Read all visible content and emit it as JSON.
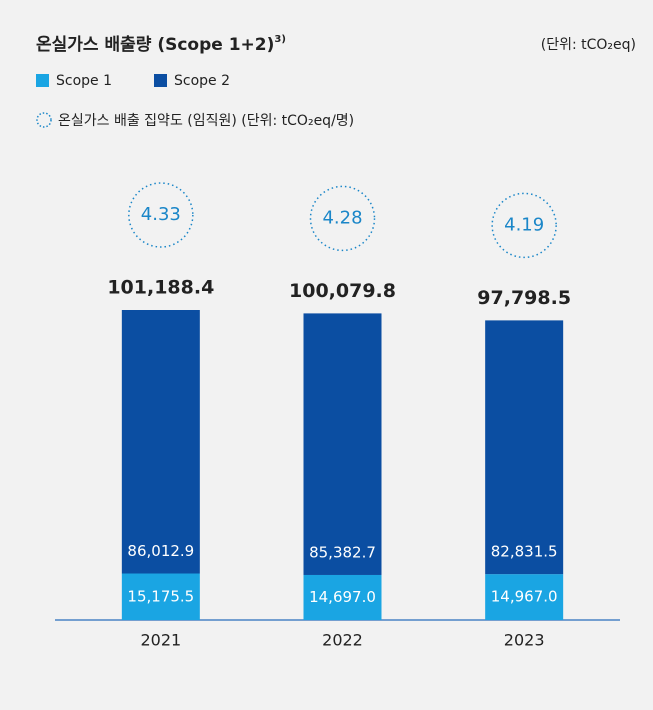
{
  "chart_data": {
    "type": "stacked-bar",
    "title": "온실가스 배출량 (Scope 1+2)",
    "title_note": "3)",
    "unit": "(단위: tCO₂eq)",
    "intensity_legend": "온실가스 배출 집약도 (임직원) (단위: tCO₂eq/명)",
    "categories": [
      "2021",
      "2022",
      "2023"
    ],
    "series": [
      {
        "name": "Scope 1",
        "color": "#1aa5e3",
        "values": [
          15175.5,
          14697.0,
          14967.0
        ],
        "value_labels": [
          "15,175.5",
          "14,697.0",
          "14,967.0"
        ]
      },
      {
        "name": "Scope 2",
        "color": "#0b4ea2",
        "values": [
          86012.9,
          85382.7,
          82831.5
        ],
        "value_labels": [
          "86,012.9",
          "85,382.7",
          "82,831.5"
        ]
      }
    ],
    "totals": [
      101188.4,
      100079.8,
      97798.5
    ],
    "total_labels": [
      "101,188.4",
      "100,079.8",
      "97,798.5"
    ],
    "intensity": [
      4.33,
      4.28,
      4.19
    ],
    "intensity_color": "#1a86c8"
  }
}
